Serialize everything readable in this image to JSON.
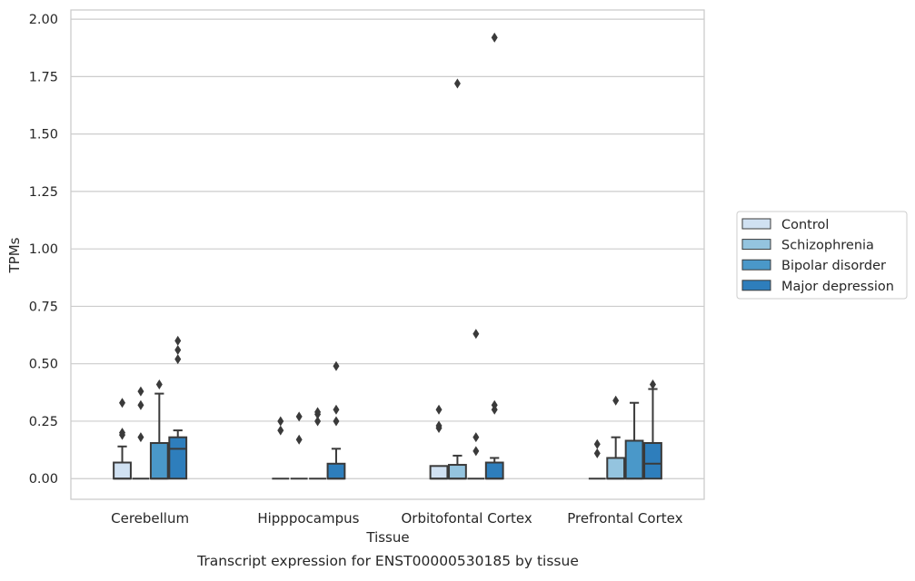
{
  "chart_data": {
    "type": "box",
    "xlabel": "Tissue",
    "ylabel": "TPMs",
    "caption": "Transcript expression for ENST00000530185 by tissue",
    "ylim": [
      -0.09,
      2.04
    ],
    "yticks": [
      0.0,
      0.25,
      0.5,
      0.75,
      1.0,
      1.25,
      1.5,
      1.75,
      2.0
    ],
    "ytick_labels": [
      "0.00",
      "0.25",
      "0.50",
      "0.75",
      "1.00",
      "1.25",
      "1.50",
      "1.75",
      "2.00"
    ],
    "grid": "horizontal",
    "legend_position": "right",
    "categories": [
      "Cerebellum",
      "Hipppocampus",
      "Orbitofontal Cortex",
      "Prefrontal Cortex"
    ],
    "series": [
      {
        "name": "Control",
        "color": "#d0e1f2",
        "boxes": [
          {
            "q1": 0.0,
            "median": 0.0,
            "q3": 0.07,
            "whisker_low": 0.0,
            "whisker_high": 0.14,
            "outliers": [
              0.19,
              0.2,
              0.33
            ]
          },
          {
            "q1": 0.0,
            "median": 0.0,
            "q3": 0.0,
            "whisker_low": 0.0,
            "whisker_high": 0.0,
            "outliers": [
              0.21,
              0.25
            ]
          },
          {
            "q1": 0.0,
            "median": 0.0,
            "q3": 0.055,
            "whisker_low": 0.0,
            "whisker_high": 0.055,
            "outliers": [
              0.22,
              0.23,
              0.3
            ]
          },
          {
            "q1": 0.0,
            "median": 0.0,
            "q3": 0.0,
            "whisker_low": 0.0,
            "whisker_high": 0.0,
            "outliers": [
              0.11,
              0.15
            ]
          }
        ]
      },
      {
        "name": "Schizophrenia",
        "color": "#94c4df",
        "boxes": [
          {
            "q1": 0.0,
            "median": 0.0,
            "q3": 0.0,
            "whisker_low": 0.0,
            "whisker_high": 0.0,
            "outliers": [
              0.18,
              0.32,
              0.38
            ]
          },
          {
            "q1": 0.0,
            "median": 0.0,
            "q3": 0.0,
            "whisker_low": 0.0,
            "whisker_high": 0.0,
            "outliers": [
              0.17,
              0.27
            ]
          },
          {
            "q1": 0.0,
            "median": 0.0,
            "q3": 0.06,
            "whisker_low": 0.0,
            "whisker_high": 0.1,
            "outliers": [
              1.72
            ]
          },
          {
            "q1": 0.0,
            "median": 0.0,
            "q3": 0.09,
            "whisker_low": 0.0,
            "whisker_high": 0.18,
            "outliers": [
              0.34
            ]
          }
        ]
      },
      {
        "name": "Bipolar disorder",
        "color": "#4a98c9",
        "boxes": [
          {
            "q1": 0.0,
            "median": 0.0,
            "q3": 0.155,
            "whisker_low": 0.0,
            "whisker_high": 0.37,
            "outliers": [
              0.41
            ]
          },
          {
            "q1": 0.0,
            "median": 0.0,
            "q3": 0.0,
            "whisker_low": 0.0,
            "whisker_high": 0.0,
            "outliers": [
              0.25,
              0.28,
              0.29
            ]
          },
          {
            "q1": 0.0,
            "median": 0.0,
            "q3": 0.0,
            "whisker_low": 0.0,
            "whisker_high": 0.0,
            "outliers": [
              0.12,
              0.18,
              0.63
            ]
          },
          {
            "q1": 0.0,
            "median": 0.0,
            "q3": 0.165,
            "whisker_low": 0.0,
            "whisker_high": 0.33,
            "outliers": []
          }
        ]
      },
      {
        "name": "Major depression",
        "color": "#2e7ebc",
        "boxes": [
          {
            "q1": 0.0,
            "median": 0.13,
            "q3": 0.18,
            "whisker_low": 0.0,
            "whisker_high": 0.21,
            "outliers": [
              0.52,
              0.56,
              0.6
            ]
          },
          {
            "q1": 0.0,
            "median": 0.0,
            "q3": 0.065,
            "whisker_low": 0.0,
            "whisker_high": 0.13,
            "outliers": [
              0.25,
              0.3,
              0.49
            ]
          },
          {
            "q1": 0.0,
            "median": 0.0,
            "q3": 0.07,
            "whisker_low": 0.0,
            "whisker_high": 0.09,
            "outliers": [
              0.3,
              0.32,
              1.92
            ]
          },
          {
            "q1": 0.0,
            "median": 0.065,
            "q3": 0.155,
            "whisker_low": 0.0,
            "whisker_high": 0.39,
            "outliers": [
              0.41
            ]
          }
        ]
      }
    ]
  }
}
